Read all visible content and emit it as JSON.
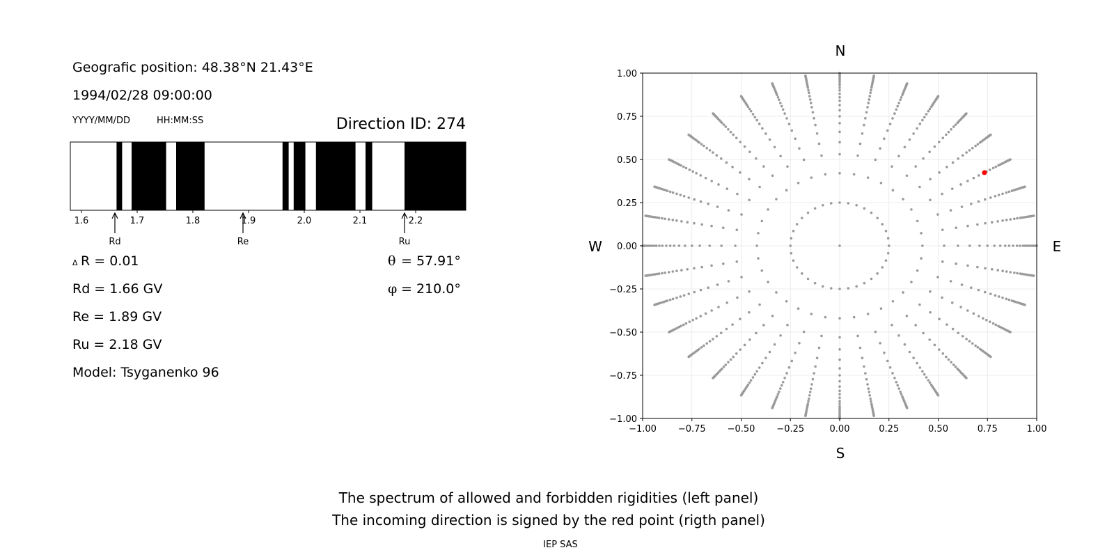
{
  "left_panel": {
    "position_label": "Geografic position: 48.38°N 21.43°E",
    "datetime": "1994/02/28 09:00:00",
    "date_format_hint": "YYYY/MM/DD",
    "time_format_hint": "HH:MM:SS",
    "direction_id": "Direction ID: 274",
    "delta_r_symbol": "Δ",
    "delta_r_text": "R = 0.01",
    "theta_symbol": "θ",
    "theta_text": "= 57.91°",
    "phi_symbol": "φ",
    "phi_text": "= 210.0°",
    "rd_line": "Rd = 1.66 GV",
    "re_line": "Re = 1.89 GV",
    "ru_line": "Ru = 2.18 GV",
    "model_line": "Model: Tsyganenko 96",
    "markers": [
      {
        "label": "Rd",
        "value": 1.66
      },
      {
        "label": "Re",
        "value": 1.89
      },
      {
        "label": "Ru",
        "value": 2.18
      }
    ]
  },
  "right_panel": {
    "north": "N",
    "south": "S",
    "west": "W",
    "east": "E",
    "highlight_color": "#ff0000",
    "point_color": "#9a9a9a"
  },
  "footer": {
    "caption_line1": "The spectrum of allowed and forbidden rigidities (left panel)",
    "caption_line2": "The incoming direction is signed by the red point (rigth panel)",
    "institution": "IEP SAS"
  },
  "chart_data": [
    {
      "type": "bar",
      "name": "rigidity-spectrum",
      "xlim": [
        1.58,
        2.29
      ],
      "ticks": [
        1.6,
        1.7,
        1.8,
        1.9,
        2.0,
        2.1,
        2.2
      ],
      "tick_labels": [
        "1.6",
        "1.7",
        "1.8",
        "1.9",
        "2.0",
        "2.1",
        "2.2"
      ],
      "forbidden_intervals": [
        [
          1.663,
          1.673
        ],
        [
          1.69,
          1.752
        ],
        [
          1.77,
          1.821
        ],
        [
          1.961,
          1.972
        ],
        [
          1.981,
          2.002
        ],
        [
          2.021,
          2.092
        ],
        [
          2.11,
          2.122
        ],
        [
          2.18,
          2.29
        ]
      ]
    },
    {
      "type": "scatter",
      "name": "incoming-directions",
      "xlim": [
        -1.0,
        1.0
      ],
      "ylim": [
        -1.0,
        1.0
      ],
      "ticks": [
        -1.0,
        -0.75,
        -0.5,
        -0.25,
        0.0,
        0.25,
        0.5,
        0.75,
        1.0
      ],
      "tick_labels": [
        "−1.00",
        "−0.75",
        "−0.50",
        "−0.25",
        "0.00",
        "0.25",
        "0.50",
        "0.75",
        "1.00"
      ],
      "grid": true,
      "rings": [
        {
          "radius": 0.25,
          "points": 36
        },
        {
          "radius": 0.42,
          "points": 36
        },
        {
          "radius": 0.53,
          "points": 36
        },
        {
          "radius": 0.6,
          "points": 36
        },
        {
          "radius": 0.66,
          "points": 36
        },
        {
          "radius": 0.71,
          "points": 36
        },
        {
          "radius": 0.75,
          "points": 36
        },
        {
          "radius": 0.785,
          "points": 36
        },
        {
          "radius": 0.815,
          "points": 36
        },
        {
          "radius": 0.84,
          "points": 36
        },
        {
          "radius": 0.86,
          "points": 36
        },
        {
          "radius": 0.88,
          "points": 36
        },
        {
          "radius": 0.9,
          "points": 36
        },
        {
          "radius": 0.915,
          "points": 36
        },
        {
          "radius": 0.93,
          "points": 36
        },
        {
          "radius": 0.94,
          "points": 36
        },
        {
          "radius": 0.95,
          "points": 36
        },
        {
          "radius": 0.96,
          "points": 36
        },
        {
          "radius": 0.97,
          "points": 36
        },
        {
          "radius": 0.978,
          "points": 36
        },
        {
          "radius": 0.985,
          "points": 36
        },
        {
          "radius": 0.99,
          "points": 36
        },
        {
          "radius": 0.995,
          "points": 36
        },
        {
          "radius": 1.0,
          "points": 36
        }
      ],
      "center_point": [
        0.0,
        0.0
      ],
      "highlighted_point": [
        0.735,
        0.424
      ]
    }
  ]
}
